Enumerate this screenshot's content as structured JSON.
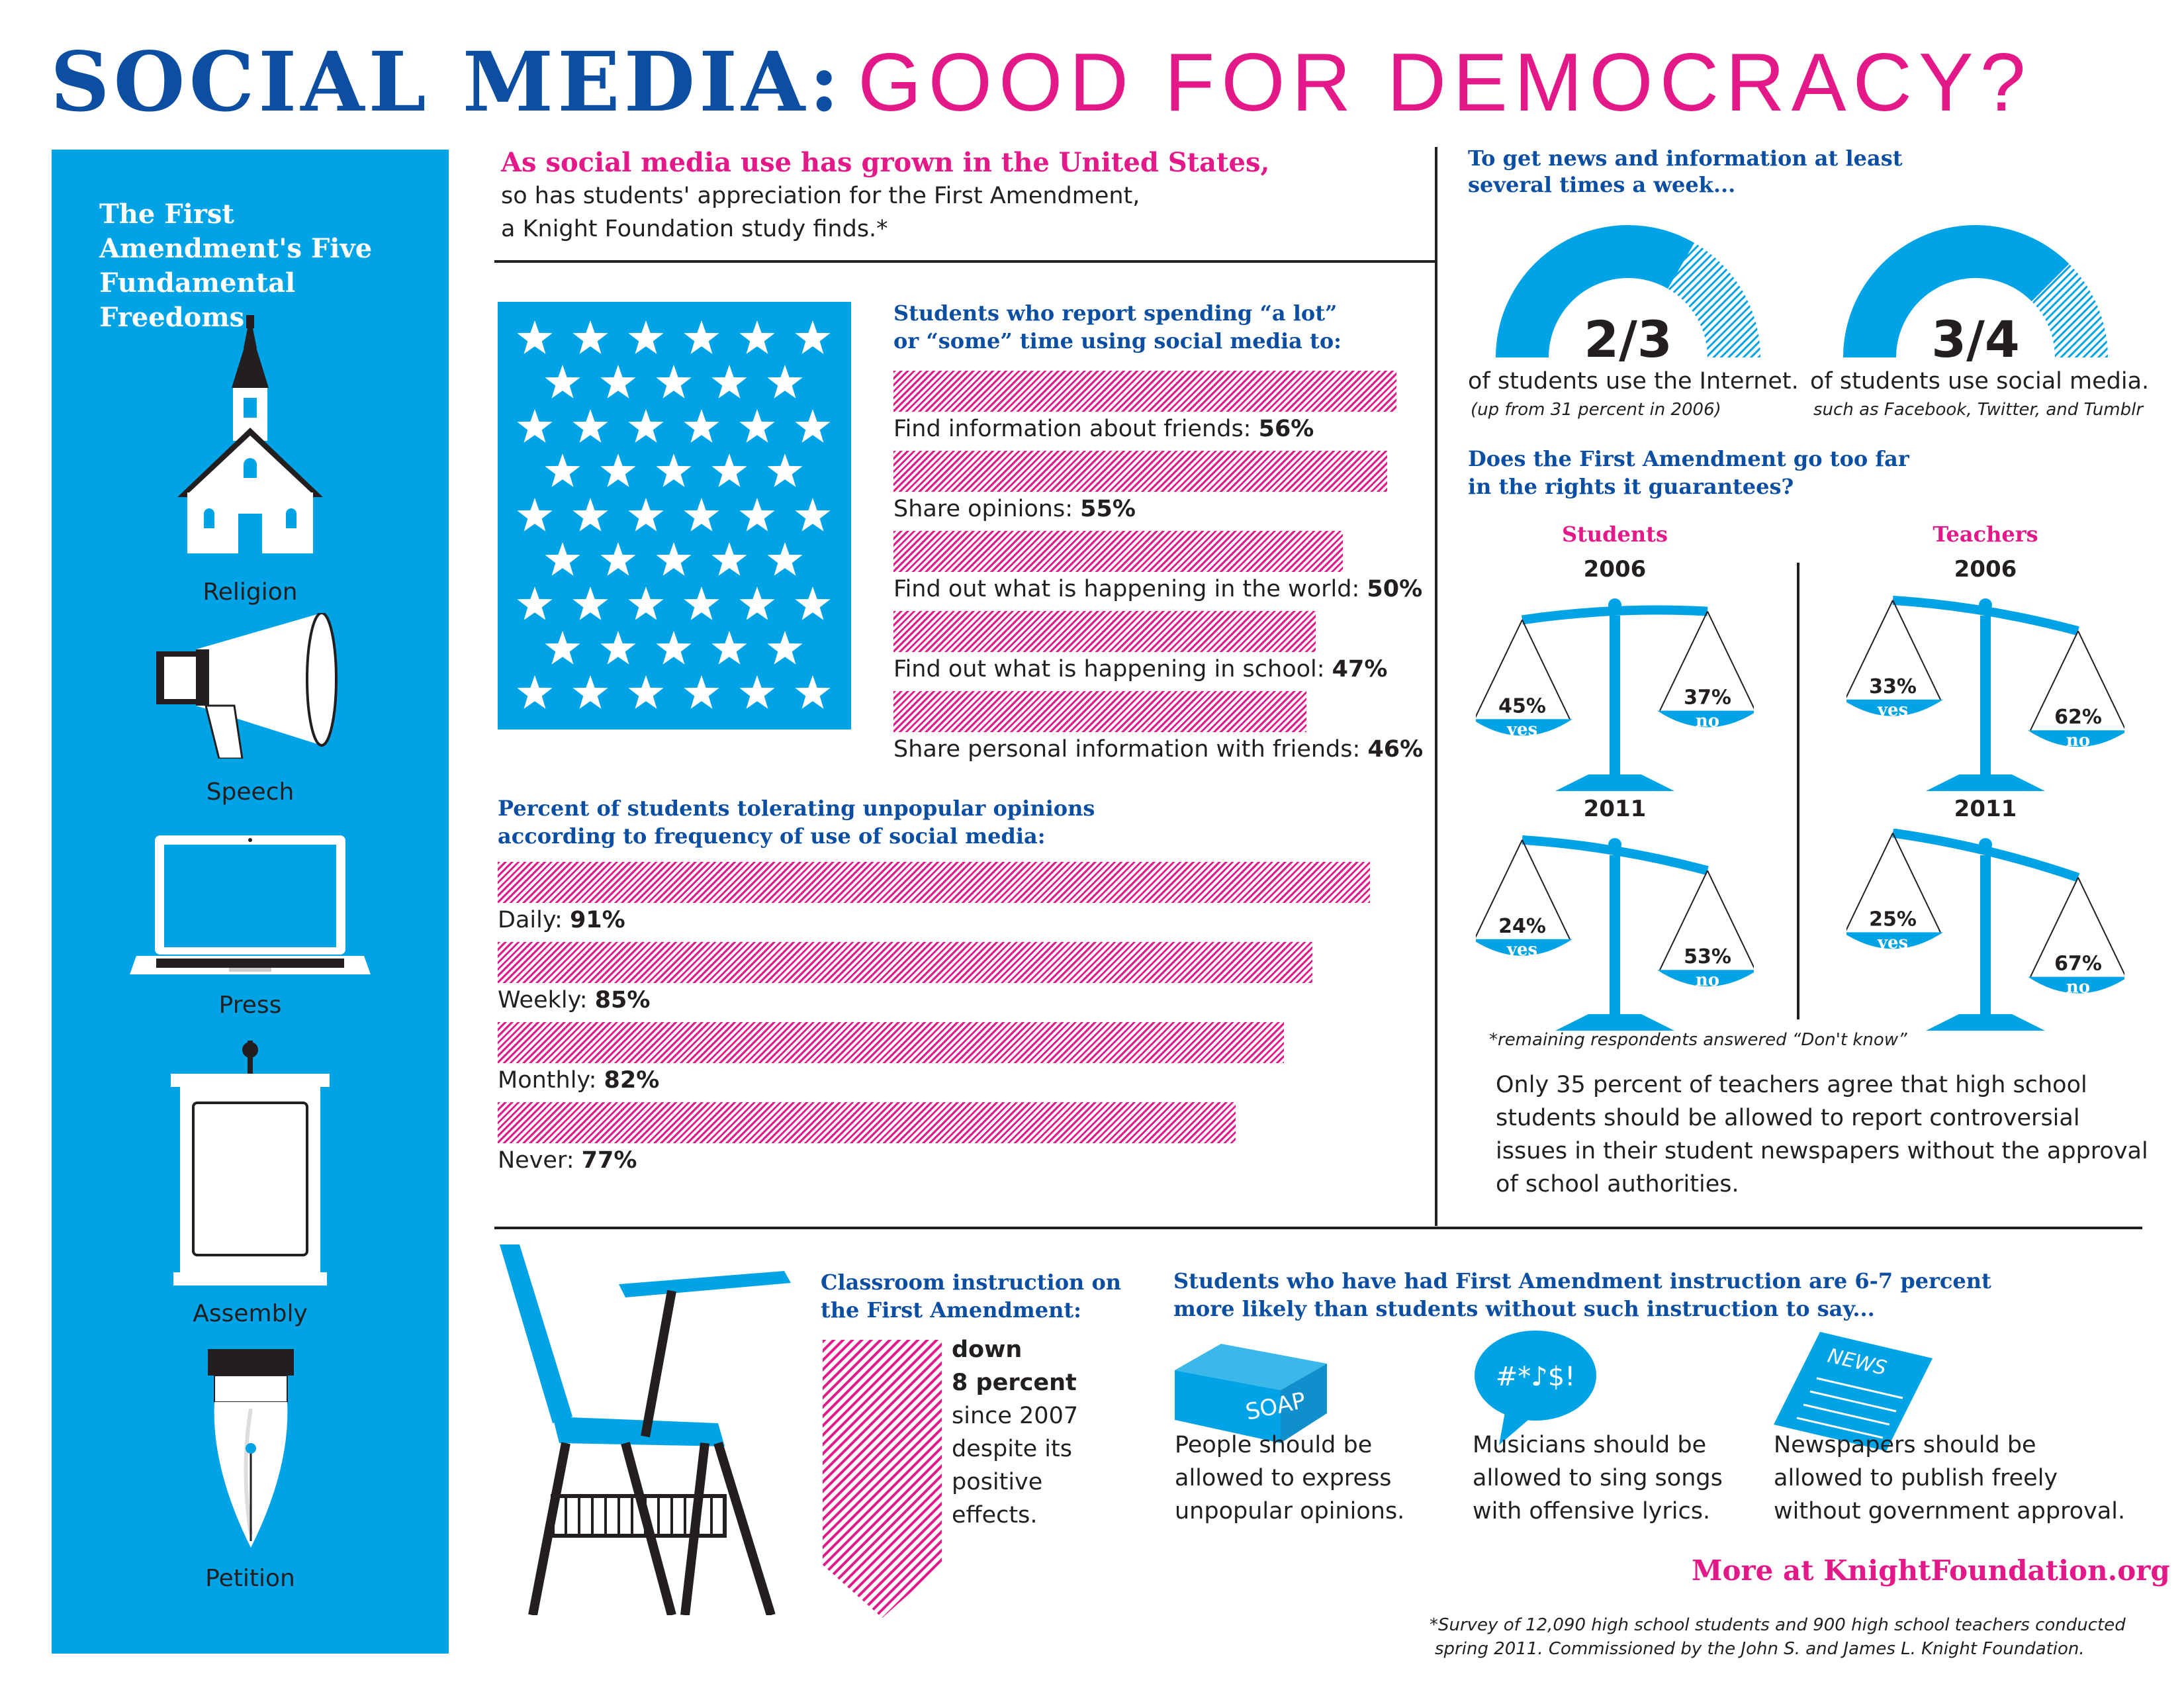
{
  "title": {
    "part1": "SOCIAL MEDIA:",
    "part2": "GOOD FOR DEMOCRACY?"
  },
  "sidebar": {
    "heading": "The First Amendment's Five Fundamental Freedoms",
    "items": [
      {
        "label": "Religion",
        "icon": "church-icon"
      },
      {
        "label": "Speech",
        "icon": "megaphone-icon"
      },
      {
        "label": "Press",
        "icon": "laptop-icon"
      },
      {
        "label": "Assembly",
        "icon": "podium-icon"
      },
      {
        "label": "Petition",
        "icon": "fountain-pen-icon"
      }
    ]
  },
  "intro": {
    "headline": "As social media use has grown in the United States,",
    "line2": "so has students' appreciation for the First Amendment,",
    "line3": "a Knight Foundation study finds.*"
  },
  "activities": {
    "heading_line1": "Students who report spending “a lot”",
    "heading_line2": "or “some” time using social media to:",
    "items": [
      {
        "label": "Find information about friends:",
        "value": "56%",
        "pct": 56
      },
      {
        "label": "Share opinions:",
        "value": "55%",
        "pct": 55
      },
      {
        "label": "Find out what is happening in the world:",
        "value": "50%",
        "pct": 50
      },
      {
        "label": "Find out what is happening in school:",
        "value": "47%",
        "pct": 47
      },
      {
        "label": "Share personal information with friends:",
        "value": "46%",
        "pct": 46
      }
    ]
  },
  "tolerance": {
    "heading_line1": "Percent of students tolerating unpopular opinions",
    "heading_line2": "according to frequency of use of social media:",
    "items": [
      {
        "label": "Daily:",
        "value": "91%",
        "pct": 91
      },
      {
        "label": "Weekly:",
        "value": "85%",
        "pct": 85
      },
      {
        "label": "Monthly:",
        "value": "82%",
        "pct": 82
      },
      {
        "label": "Never:",
        "value": "77%",
        "pct": 77
      }
    ]
  },
  "news": {
    "heading_line1": "To get news and information at least",
    "heading_line2": "several times a week...",
    "gauges": [
      {
        "fraction": "2/3",
        "value": 0.667,
        "caption": "of students use the Internet.",
        "sub": "(up from 31 percent in 2006)"
      },
      {
        "fraction": "3/4",
        "value": 0.75,
        "caption": "of students use social media.",
        "sub": "such as Facebook, Twitter, and Tumblr"
      }
    ]
  },
  "too_far": {
    "heading_line1": "Does the First Amendment go too far",
    "heading_line2": "in the rights it guarantees?",
    "groups": [
      {
        "name": "Students",
        "scales": [
          {
            "year": "2006",
            "yes": "45%",
            "no": "37%"
          },
          {
            "year": "2011",
            "yes": "24%",
            "no": "53%"
          }
        ]
      },
      {
        "name": "Teachers",
        "scales": [
          {
            "year": "2006",
            "yes": "33%",
            "no": "62%"
          },
          {
            "year": "2011",
            "yes": "25%",
            "no": "67%"
          }
        ]
      }
    ],
    "yes_label": "yes",
    "no_label": "no",
    "footnote": "*remaining respondents answered “Don't know”",
    "teachers_note": "Only 35 percent of teachers agree that high school students should be allowed to report controversial issues in their student newspapers without the approval of school authorities."
  },
  "classroom": {
    "heading_line1": "Classroom instruction on",
    "heading_line2": "the First Amendment:",
    "line1": "down",
    "line2": "8 percent",
    "line3": "since 2007",
    "line4": "despite its",
    "line5": "positive",
    "line6": "effects."
  },
  "instruction": {
    "heading_line1": "Students who have had First Amendment instruction are 6-7 percent",
    "heading_line2": "more likely than students without such instruction to say...",
    "items": [
      {
        "icon_text": "SOAP",
        "l1": "People should be",
        "l2": "allowed to express",
        "l3": "unpopular opinions."
      },
      {
        "icon_text": "#*♪$!",
        "l1": "Musicians should be",
        "l2": "allowed to sing songs",
        "l3": "with offensive lyrics."
      },
      {
        "icon_text": "NEWS",
        "l1": "Newspapers should be",
        "l2": "allowed to publish freely",
        "l3": "without government approval."
      }
    ]
  },
  "more_link": "More at KnightFoundation.org",
  "survey_note_line1": "*Survey of 12,090 high school students and 900 high school teachers conducted",
  "survey_note_line2": "spring 2011. Commissioned by the John S. and James L. Knight Foundation.",
  "colors": {
    "blue": "#0b4ea2",
    "pink": "#e3198a",
    "cyan": "#00a3e6"
  }
}
